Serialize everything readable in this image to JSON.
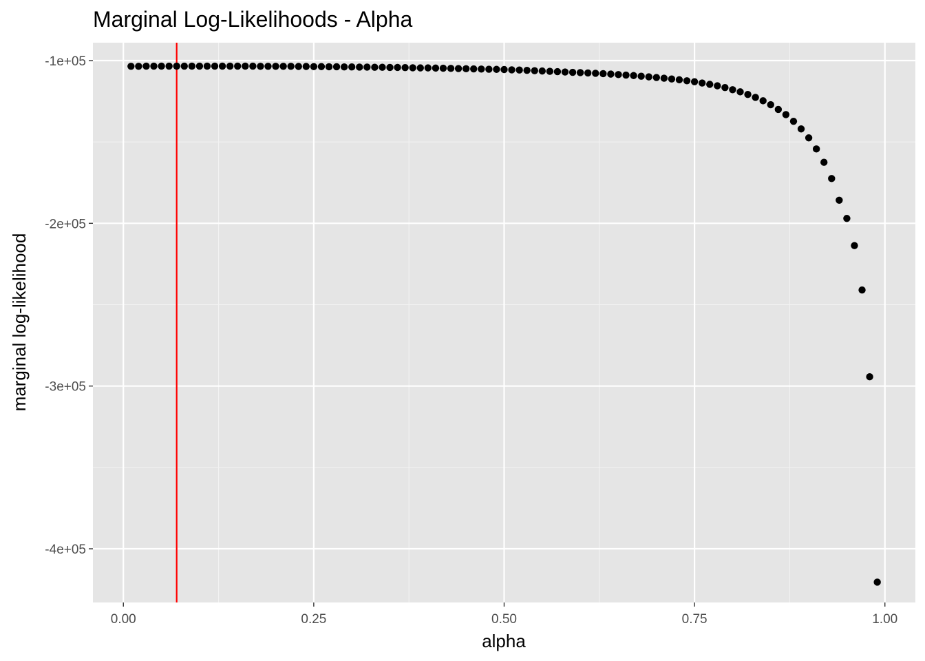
{
  "chart_data": {
    "type": "scatter",
    "title": "Marginal Log-Likelihoods - Alpha",
    "xlabel": "alpha",
    "ylabel": "marginal log-likelihood",
    "xlim": [
      -0.04,
      1.04
    ],
    "ylim": [
      -433000,
      -89000
    ],
    "x_ticks": [
      0,
      0.25,
      0.5,
      0.75,
      1
    ],
    "x_tick_labels": [
      "0.00",
      "0.25",
      "0.50",
      "0.75",
      "1.00"
    ],
    "y_ticks": [
      -100000,
      -200000,
      -300000,
      -400000
    ],
    "y_tick_labels": [
      "-1e+05",
      "-2e+05",
      "-3e+05",
      "-4e+05"
    ],
    "grid": true,
    "background": "#e5e5e5",
    "point_color": "#000000",
    "vline": {
      "x": 0.07,
      "color": "#ff0000"
    },
    "series": [
      {
        "x": [
          0.01,
          0.02,
          0.03,
          0.04,
          0.05,
          0.06,
          0.07,
          0.08,
          0.09,
          0.1,
          0.11,
          0.12,
          0.13,
          0.14,
          0.15,
          0.16,
          0.17,
          0.18,
          0.19,
          0.2,
          0.21,
          0.22,
          0.23,
          0.24,
          0.25,
          0.26,
          0.27,
          0.28,
          0.29,
          0.3,
          0.31,
          0.32,
          0.33,
          0.34,
          0.35,
          0.36,
          0.37,
          0.38,
          0.39,
          0.4,
          0.41,
          0.42,
          0.43,
          0.44,
          0.45,
          0.46,
          0.47,
          0.48,
          0.49,
          0.5,
          0.51,
          0.52,
          0.53,
          0.54,
          0.55,
          0.56,
          0.57,
          0.58,
          0.59,
          0.6,
          0.61,
          0.62,
          0.63,
          0.64,
          0.65,
          0.66,
          0.67,
          0.68,
          0.69,
          0.7,
          0.71,
          0.72,
          0.73,
          0.74,
          0.75,
          0.76,
          0.77,
          0.78,
          0.79,
          0.8,
          0.81,
          0.82,
          0.83,
          0.84,
          0.85,
          0.86,
          0.87,
          0.88,
          0.89,
          0.9,
          0.91,
          0.92,
          0.93,
          0.94,
          0.95,
          0.96,
          0.97,
          0.98,
          0.99
        ],
        "y": [
          -103500,
          -103500,
          -103400,
          -103400,
          -103400,
          -103400,
          -103400,
          -103400,
          -103400,
          -103400,
          -103400,
          -103400,
          -103400,
          -103400,
          -103400,
          -103400,
          -103400,
          -103500,
          -103500,
          -103500,
          -103500,
          -103500,
          -103600,
          -103600,
          -103700,
          -103700,
          -103800,
          -103800,
          -103900,
          -103900,
          -104000,
          -104000,
          -104100,
          -104100,
          -104200,
          -104200,
          -104300,
          -104400,
          -104500,
          -104500,
          -104600,
          -104700,
          -104800,
          -104900,
          -105000,
          -105100,
          -105200,
          -105300,
          -105400,
          -105500,
          -105700,
          -105800,
          -106000,
          -106200,
          -106400,
          -106600,
          -106800,
          -107000,
          -107200,
          -107400,
          -107600,
          -107800,
          -108000,
          -108300,
          -108600,
          -108900,
          -109200,
          -109600,
          -110000,
          -110400,
          -110800,
          -111300,
          -111800,
          -112400,
          -113000,
          -113800,
          -114600,
          -115500,
          -116600,
          -117900,
          -119200,
          -120800,
          -122600,
          -124700,
          -127100,
          -130000,
          -133200,
          -137300,
          -142000,
          -147500,
          -154300,
          -162500,
          -172500,
          -185800,
          -197000,
          -213700,
          -241000,
          -294300,
          -420500
        ]
      }
    ]
  }
}
